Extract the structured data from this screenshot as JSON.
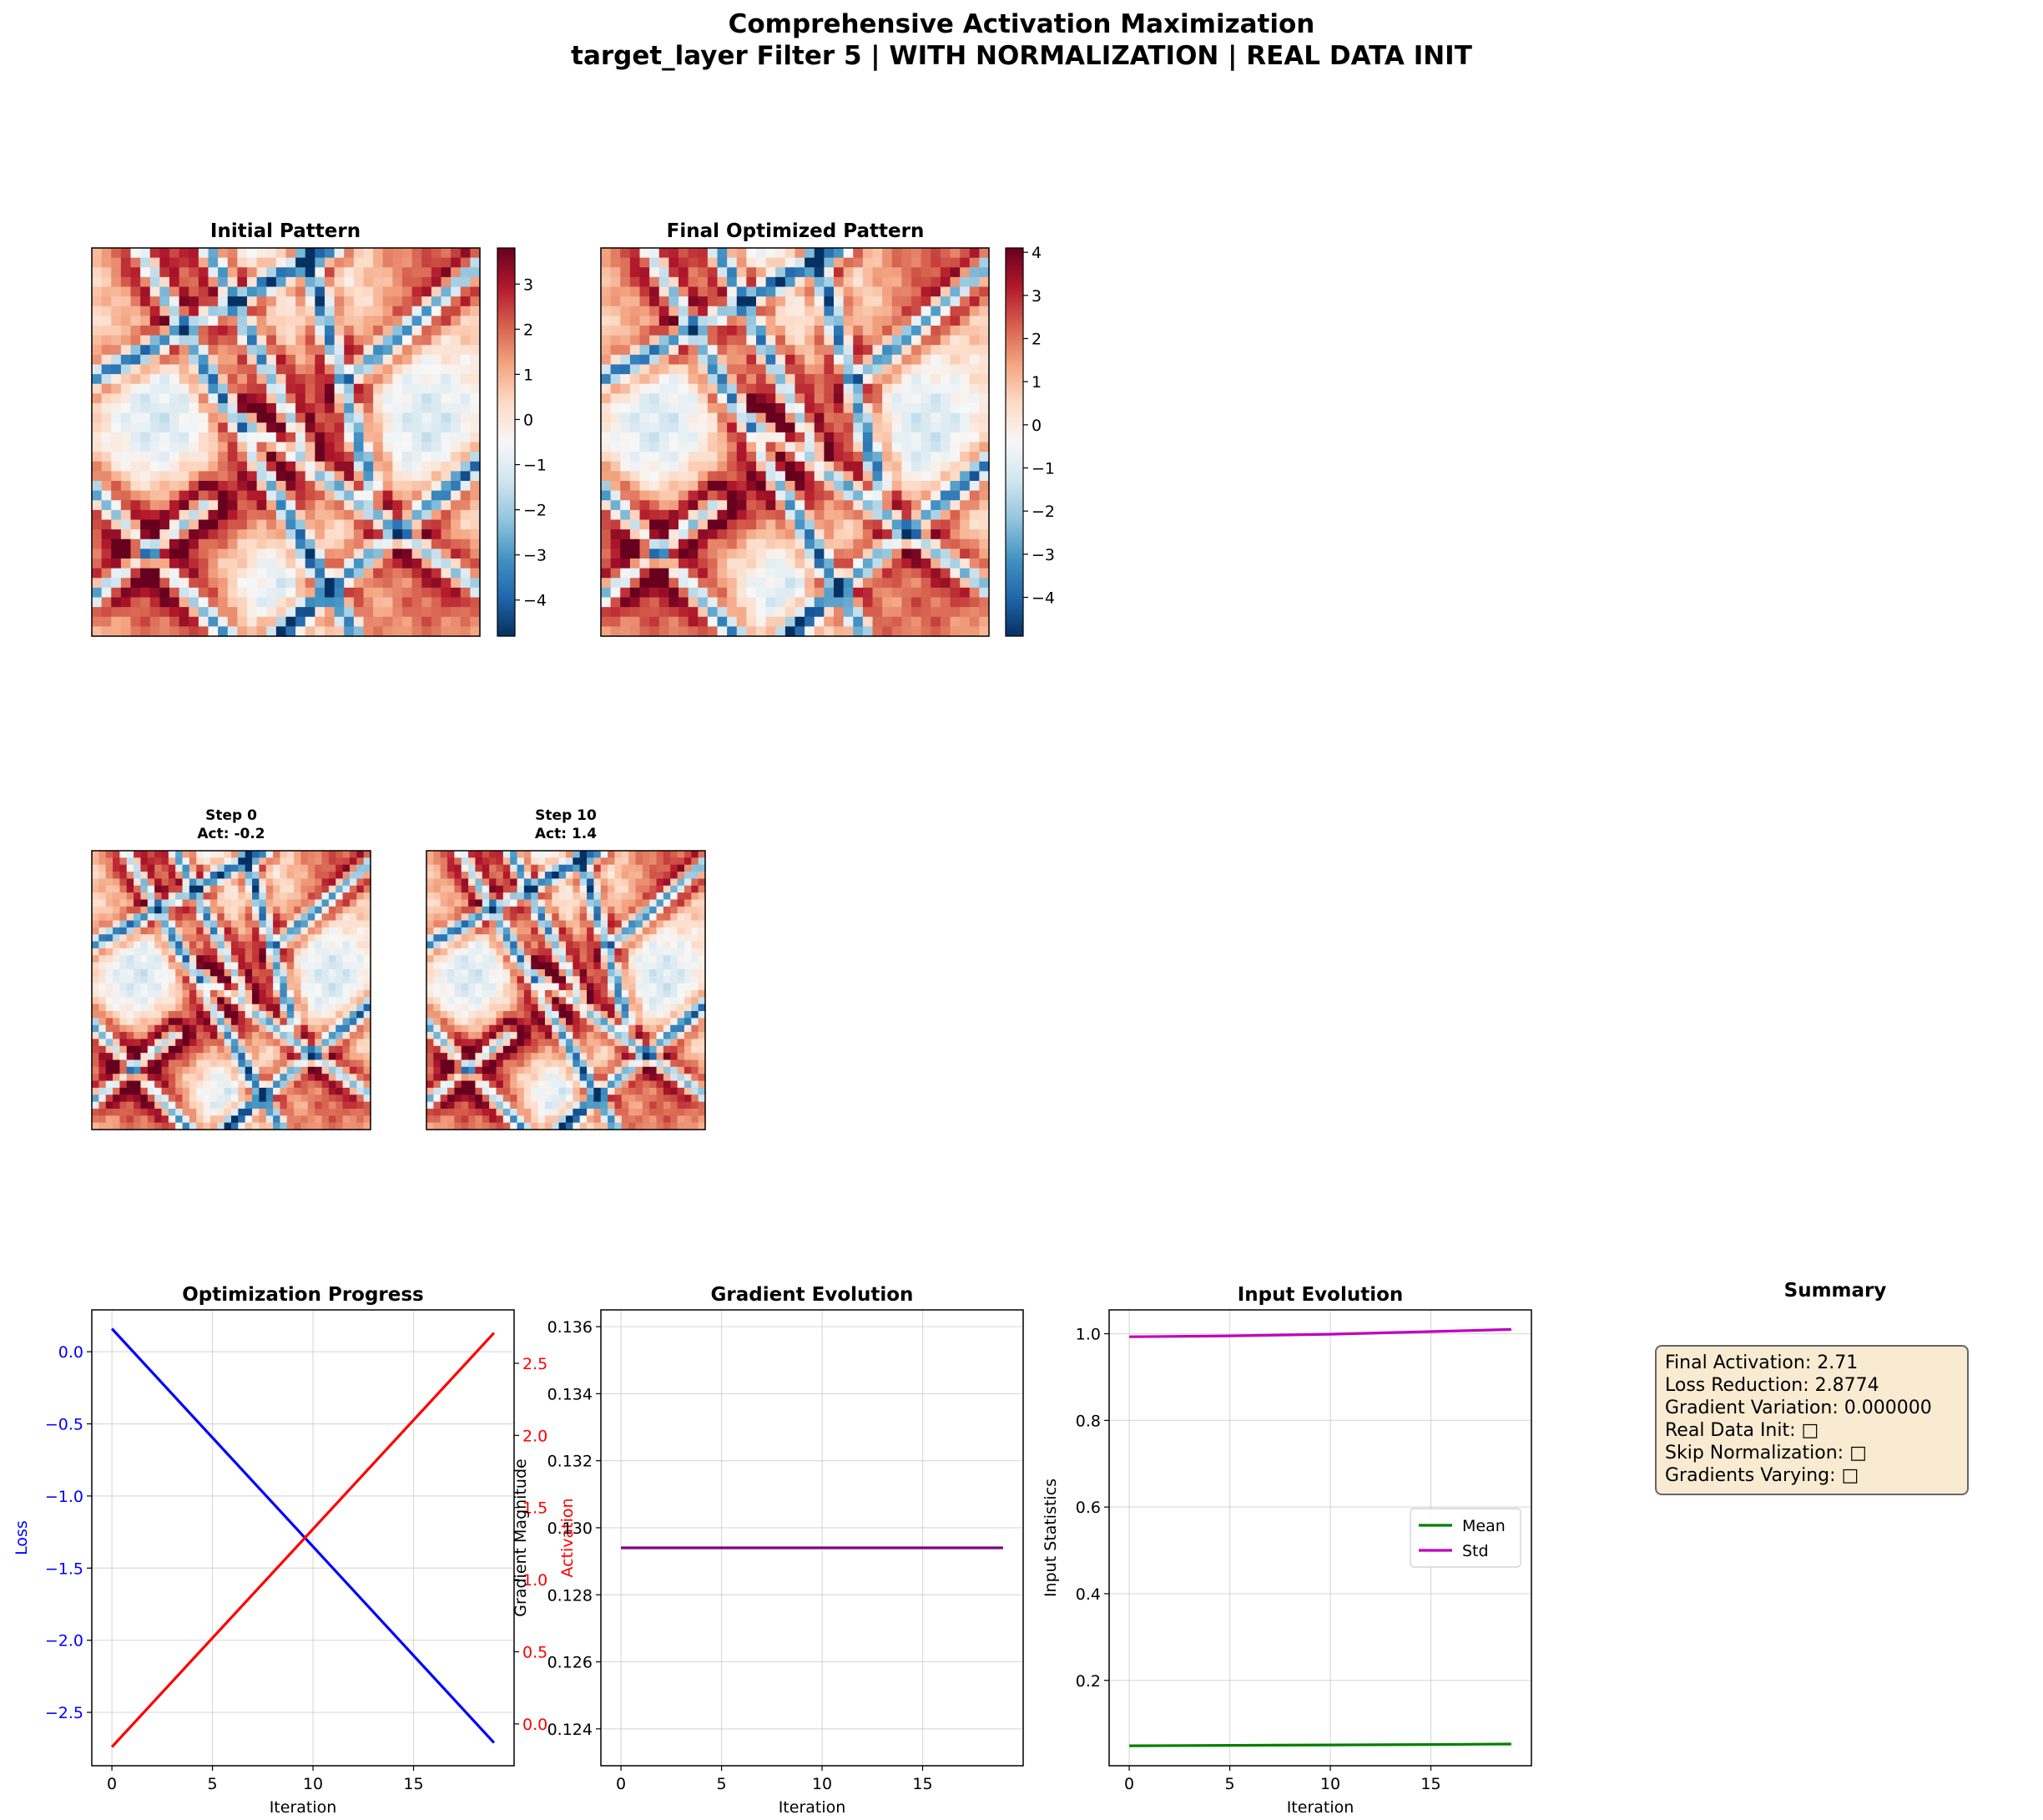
{
  "title": {
    "line1": "Comprehensive Activation Maximization",
    "line2": "target_layer Filter 5 | WITH NORMALIZATION | REAL DATA INIT"
  },
  "panels": {
    "initial": {
      "title": "Initial Pattern",
      "colorbar_ticks": [
        -4,
        -3,
        -2,
        -1,
        0,
        1,
        2,
        3
      ],
      "vmin": -4.8,
      "vmax": 3.8
    },
    "final": {
      "title": "Final Optimized Pattern",
      "colorbar_ticks": [
        -4,
        -3,
        -2,
        -1,
        0,
        1,
        2,
        3,
        4
      ],
      "vmin": -4.9,
      "vmax": 4.1
    },
    "step0": {
      "title_line1": "Step 0",
      "title_line2": "Act: -0.2"
    },
    "step10": {
      "title_line1": "Step 10",
      "title_line2": "Act: 1.4"
    },
    "colormap": [
      "#053061",
      "#2166ac",
      "#4393c3",
      "#92c5de",
      "#d1e5f0",
      "#f7f7f7",
      "#fddbc7",
      "#f4a582",
      "#d6604d",
      "#b2182b",
      "#67001f"
    ]
  },
  "chart_data": [
    {
      "type": "line",
      "title": "Optimization Progress",
      "xlabel": "Iteration",
      "ylabel": "Loss",
      "y2label": "Activation",
      "xlim": [
        -1,
        20
      ],
      "xticks": [
        0,
        5,
        10,
        15
      ],
      "ylim": [
        -2.87,
        0.29
      ],
      "yticks": [
        -2.5,
        -2.0,
        -1.5,
        -1.0,
        -0.5,
        0.0
      ],
      "y2lim": [
        -0.29,
        2.87
      ],
      "y2ticks": [
        0.0,
        0.5,
        1.0,
        1.5,
        2.0,
        2.5
      ],
      "series": [
        {
          "axis": "left",
          "color": "#0000ff",
          "x": [
            0,
            19
          ],
          "values": [
            0.16,
            -2.71
          ]
        },
        {
          "axis": "right",
          "color": "#ff0000",
          "x": [
            0,
            19
          ],
          "values": [
            -0.16,
            2.71
          ]
        }
      ]
    },
    {
      "type": "line",
      "title": "Gradient Evolution",
      "xlabel": "Iteration",
      "ylabel": "Gradient Magnitude",
      "xlim": [
        -1,
        20
      ],
      "xticks": [
        0,
        5,
        10,
        15
      ],
      "ylim": [
        0.1229,
        0.1365
      ],
      "yticks": [
        0.124,
        0.126,
        0.128,
        0.13,
        0.132,
        0.134,
        0.136
      ],
      "series": [
        {
          "color": "#800080",
          "x": [
            0,
            19
          ],
          "values": [
            0.1294,
            0.1294
          ]
        }
      ]
    },
    {
      "type": "line",
      "title": "Input Evolution",
      "xlabel": "Iteration",
      "ylabel": "Input Statistics",
      "xlim": [
        -1,
        20
      ],
      "xticks": [
        0,
        5,
        10,
        15
      ],
      "ylim": [
        0.003,
        1.055
      ],
      "yticks": [
        0.2,
        0.4,
        0.6,
        0.8,
        1.0
      ],
      "legend": "center-right",
      "series": [
        {
          "name": "Mean",
          "color": "#008000",
          "x": [
            0,
            5,
            10,
            15,
            19
          ],
          "values": [
            0.049,
            0.05,
            0.051,
            0.052,
            0.053
          ]
        },
        {
          "name": "Std",
          "color": "#bf00bf",
          "x": [
            0,
            5,
            10,
            15,
            19
          ],
          "values": [
            0.993,
            0.995,
            0.999,
            1.005,
            1.01
          ]
        }
      ]
    }
  ],
  "summary": {
    "title": "Summary",
    "lines": [
      "Final Activation: 2.71",
      "Loss Reduction: 2.8774",
      "Gradient Variation: 0.000000",
      "Real Data Init: □",
      "Skip Normalization: □",
      "Gradients Varying: □"
    ]
  }
}
